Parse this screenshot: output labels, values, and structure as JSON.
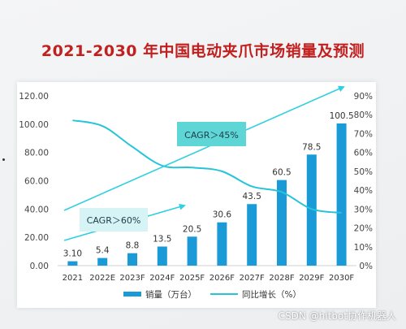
{
  "title": "2021-2030 年中国电动夹爪市场销量及预测",
  "watermark": "CSDN @hitbot协作机器人",
  "colors": {
    "bar": "#1a9ad6",
    "line": "#25c4d9",
    "arrow": "#2fd0e0",
    "title": "#c21f1f",
    "callout": "#5ed6d6"
  },
  "chart_data": {
    "type": "bar",
    "categories": [
      "2021",
      "2022E",
      "2023F",
      "2024F",
      "2025F",
      "2026F",
      "2027F",
      "2028F",
      "2029F",
      "2030F"
    ],
    "series": [
      {
        "name": "销量（万台）",
        "type": "bar",
        "axis": "left",
        "values": [
          3.1,
          5.4,
          8.8,
          13.5,
          20.5,
          30.6,
          43.5,
          60.5,
          78.5,
          100.5
        ]
      },
      {
        "name": "同比增长（%）",
        "type": "line",
        "axis": "right",
        "values": [
          77,
          74,
          63,
          53,
          52,
          50,
          42,
          39,
          30,
          28
        ]
      }
    ],
    "data_labels": [
      "3.10",
      "5.4",
      "8.8",
      "13.5",
      "20.5",
      "30.6",
      "43.5",
      "60.5",
      "78.5",
      "100.5"
    ],
    "y_left": {
      "ticks": [
        "0.00",
        "20.00",
        "40.00",
        "60.00",
        "80.00",
        "100.00",
        "120.00"
      ],
      "ylim": [
        0,
        120
      ]
    },
    "y_right": {
      "ticks": [
        "0%",
        "10%",
        "20%",
        "30%",
        "40%",
        "50%",
        "60%",
        "70%",
        "80%",
        "90%"
      ],
      "ylim": [
        0,
        90
      ]
    },
    "annotations": [
      {
        "text": "CAGR＞45%",
        "style": "dark"
      },
      {
        "text": "CAGR＞60%",
        "style": "light"
      }
    ],
    "legend": {
      "position": "bottom"
    },
    "grid": false
  }
}
